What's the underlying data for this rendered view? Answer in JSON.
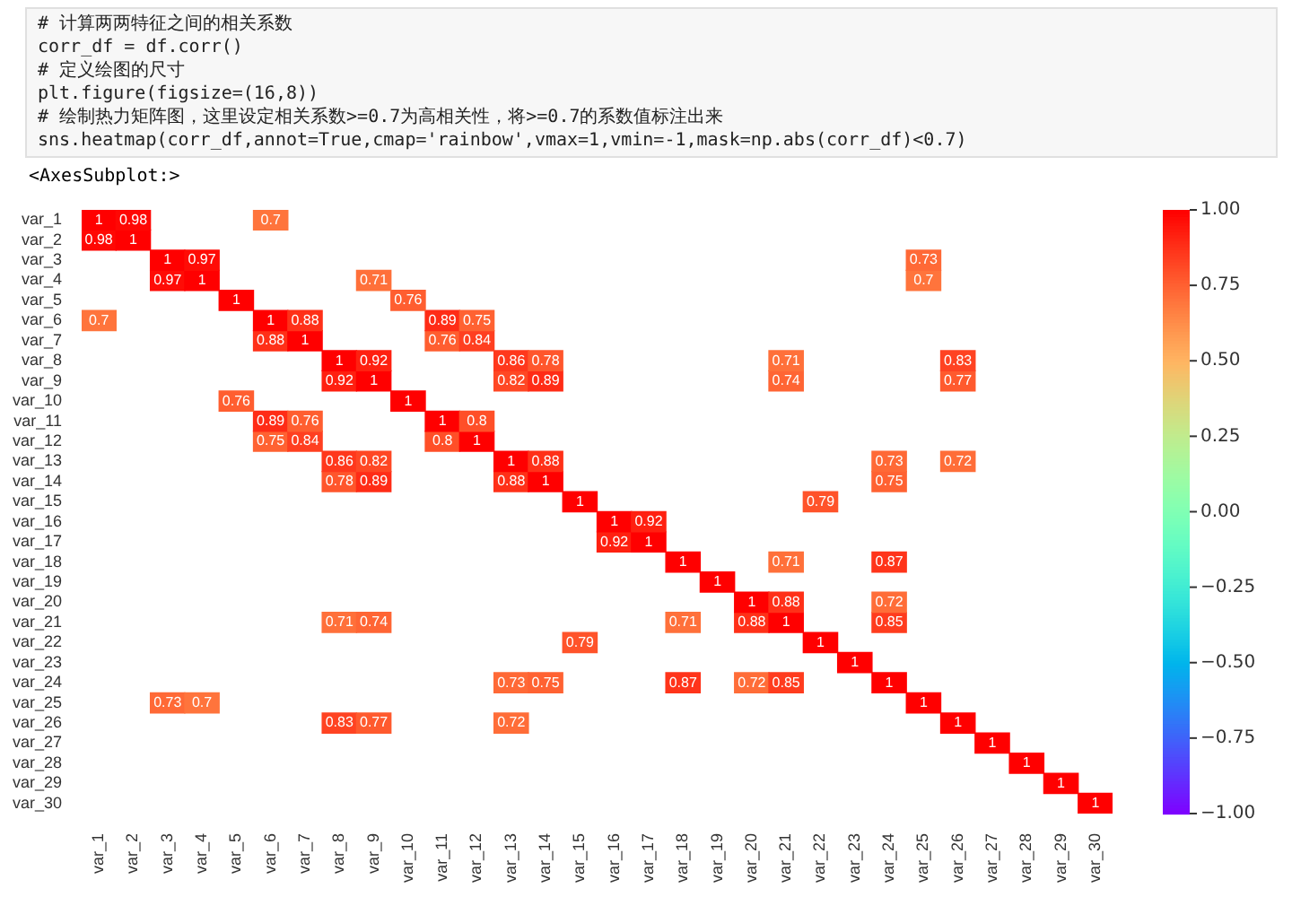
{
  "chart_data": {
    "type": "heatmap",
    "annotations": [
      "# 计算两两特征之间的相关系数",
      "corr_df = df.corr()",
      "# 定义绘图的尺寸",
      "plt.figure(figsize=(16,8))",
      "# 绘制热力矩阵图，这里设定相关系数>=0.7为高相关性，将>=0.7的系数值标注出来",
      "sns.heatmap(corr_df,annot=True,cmap='rainbow',vmax=1,vmin=-1,mask=np.abs(corr_df)<0.7)",
      "<AxesSubplot:>"
    ],
    "categories": [
      "var_1",
      "var_2",
      "var_3",
      "var_4",
      "var_5",
      "var_6",
      "var_7",
      "var_8",
      "var_9",
      "var_10",
      "var_11",
      "var_12",
      "var_13",
      "var_14",
      "var_15",
      "var_16",
      "var_17",
      "var_18",
      "var_19",
      "var_20",
      "var_21",
      "var_22",
      "var_23",
      "var_24",
      "var_25",
      "var_26",
      "var_27",
      "var_28",
      "var_29",
      "var_30"
    ],
    "y_categories": [
      "var_1",
      "var_2",
      "var_3",
      "var_4",
      "var_5",
      "var_6",
      "var_7",
      "var_8",
      "var_9",
      "var_10",
      "var_11",
      "var_12",
      "var_13",
      "var_14",
      "var_15",
      "var_16",
      "var_17",
      "var_18",
      "var_19",
      "var_20",
      "var_21",
      "var_22",
      "var_23",
      "var_24",
      "var_25",
      "var_26",
      "var_27",
      "var_28",
      "var_29",
      "var_30"
    ],
    "cells": [
      [
        1,
        0.98,
        null,
        null,
        null,
        0.7,
        null,
        null,
        null,
        null,
        null,
        null,
        null,
        null,
        null,
        null,
        null,
        null,
        null,
        null,
        null,
        null,
        null,
        null,
        null,
        null,
        null,
        null,
        null,
        null
      ],
      [
        0.98,
        1,
        null,
        null,
        null,
        null,
        null,
        null,
        null,
        null,
        null,
        null,
        null,
        null,
        null,
        null,
        null,
        null,
        null,
        null,
        null,
        null,
        null,
        null,
        null,
        null,
        null,
        null,
        null,
        null
      ],
      [
        null,
        null,
        1,
        0.97,
        null,
        null,
        null,
        null,
        null,
        null,
        null,
        null,
        null,
        null,
        null,
        null,
        null,
        null,
        null,
        null,
        null,
        null,
        null,
        null,
        0.73,
        null,
        null,
        null,
        null,
        null
      ],
      [
        null,
        null,
        0.97,
        1,
        null,
        null,
        null,
        null,
        0.71,
        null,
        null,
        null,
        null,
        null,
        null,
        null,
        null,
        null,
        null,
        null,
        null,
        null,
        null,
        null,
        0.7,
        null,
        null,
        null,
        null,
        null
      ],
      [
        null,
        null,
        null,
        null,
        1,
        null,
        null,
        null,
        null,
        0.76,
        null,
        null,
        null,
        null,
        null,
        null,
        null,
        null,
        null,
        null,
        null,
        null,
        null,
        null,
        null,
        null,
        null,
        null,
        null,
        null
      ],
      [
        0.7,
        null,
        null,
        null,
        null,
        1,
        0.88,
        null,
        null,
        null,
        0.89,
        0.75,
        null,
        null,
        null,
        null,
        null,
        null,
        null,
        null,
        null,
        null,
        null,
        null,
        null,
        null,
        null,
        null,
        null,
        null
      ],
      [
        null,
        null,
        null,
        null,
        null,
        0.88,
        1,
        null,
        null,
        null,
        0.76,
        0.84,
        null,
        null,
        null,
        null,
        null,
        null,
        null,
        null,
        null,
        null,
        null,
        null,
        null,
        null,
        null,
        null,
        null,
        null
      ],
      [
        null,
        null,
        null,
        null,
        null,
        null,
        null,
        1,
        0.92,
        null,
        null,
        null,
        0.86,
        0.78,
        null,
        null,
        null,
        null,
        null,
        null,
        0.71,
        null,
        null,
        null,
        null,
        0.83,
        null,
        null,
        null,
        null
      ],
      [
        null,
        null,
        null,
        null,
        null,
        null,
        null,
        0.92,
        1,
        null,
        null,
        null,
        0.82,
        0.89,
        null,
        null,
        null,
        null,
        null,
        null,
        0.74,
        null,
        null,
        null,
        null,
        0.77,
        null,
        null,
        null,
        null
      ],
      [
        null,
        null,
        null,
        null,
        0.76,
        null,
        null,
        null,
        null,
        1,
        null,
        null,
        null,
        null,
        null,
        null,
        null,
        null,
        null,
        null,
        null,
        null,
        null,
        null,
        null,
        null,
        null,
        null,
        null,
        null
      ],
      [
        null,
        null,
        null,
        null,
        null,
        0.89,
        0.76,
        null,
        null,
        null,
        1,
        0.8,
        null,
        null,
        null,
        null,
        null,
        null,
        null,
        null,
        null,
        null,
        null,
        null,
        null,
        null,
        null,
        null,
        null,
        null
      ],
      [
        null,
        null,
        null,
        null,
        null,
        0.75,
        0.84,
        null,
        null,
        null,
        0.8,
        1,
        null,
        null,
        null,
        null,
        null,
        null,
        null,
        null,
        null,
        null,
        null,
        null,
        null,
        null,
        null,
        null,
        null,
        null
      ],
      [
        null,
        null,
        null,
        null,
        null,
        null,
        null,
        0.86,
        0.82,
        null,
        null,
        null,
        1,
        0.88,
        null,
        null,
        null,
        null,
        null,
        null,
        null,
        null,
        null,
        0.73,
        null,
        0.72,
        null,
        null,
        null,
        null
      ],
      [
        null,
        null,
        null,
        null,
        null,
        null,
        null,
        0.78,
        0.89,
        null,
        null,
        null,
        0.88,
        1,
        null,
        null,
        null,
        null,
        null,
        null,
        null,
        null,
        null,
        0.75,
        null,
        null,
        null,
        null,
        null,
        null
      ],
      [
        null,
        null,
        null,
        null,
        null,
        null,
        null,
        null,
        null,
        null,
        null,
        null,
        null,
        null,
        1,
        null,
        null,
        null,
        null,
        null,
        null,
        0.79,
        null,
        null,
        null,
        null,
        null,
        null,
        null,
        null
      ],
      [
        null,
        null,
        null,
        null,
        null,
        null,
        null,
        null,
        null,
        null,
        null,
        null,
        null,
        null,
        null,
        1,
        0.92,
        null,
        null,
        null,
        null,
        null,
        null,
        null,
        null,
        null,
        null,
        null,
        null,
        null
      ],
      [
        null,
        null,
        null,
        null,
        null,
        null,
        null,
        null,
        null,
        null,
        null,
        null,
        null,
        null,
        null,
        0.92,
        1,
        null,
        null,
        null,
        null,
        null,
        null,
        null,
        null,
        null,
        null,
        null,
        null,
        null
      ],
      [
        null,
        null,
        null,
        null,
        null,
        null,
        null,
        null,
        null,
        null,
        null,
        null,
        null,
        null,
        null,
        null,
        null,
        1,
        null,
        null,
        0.71,
        null,
        null,
        0.87,
        null,
        null,
        null,
        null,
        null,
        null
      ],
      [
        null,
        null,
        null,
        null,
        null,
        null,
        null,
        null,
        null,
        null,
        null,
        null,
        null,
        null,
        null,
        null,
        null,
        null,
        1,
        null,
        null,
        null,
        null,
        null,
        null,
        null,
        null,
        null,
        null,
        null
      ],
      [
        null,
        null,
        null,
        null,
        null,
        null,
        null,
        null,
        null,
        null,
        null,
        null,
        null,
        null,
        null,
        null,
        null,
        null,
        null,
        1,
        0.88,
        null,
        null,
        0.72,
        null,
        null,
        null,
        null,
        null,
        null
      ],
      [
        null,
        null,
        null,
        null,
        null,
        null,
        null,
        0.71,
        0.74,
        null,
        null,
        null,
        null,
        null,
        null,
        null,
        null,
        0.71,
        null,
        0.88,
        1,
        null,
        null,
        0.85,
        null,
        null,
        null,
        null,
        null,
        null
      ],
      [
        null,
        null,
        null,
        null,
        null,
        null,
        null,
        null,
        null,
        null,
        null,
        null,
        null,
        null,
        0.79,
        null,
        null,
        null,
        null,
        null,
        null,
        1,
        null,
        null,
        null,
        null,
        null,
        null,
        null,
        null
      ],
      [
        null,
        null,
        null,
        null,
        null,
        null,
        null,
        null,
        null,
        null,
        null,
        null,
        null,
        null,
        null,
        null,
        null,
        null,
        null,
        null,
        null,
        null,
        1,
        null,
        null,
        null,
        null,
        null,
        null,
        null
      ],
      [
        null,
        null,
        null,
        null,
        null,
        null,
        null,
        null,
        null,
        null,
        null,
        null,
        0.73,
        0.75,
        null,
        null,
        null,
        0.87,
        null,
        0.72,
        0.85,
        null,
        null,
        1,
        null,
        null,
        null,
        null,
        null,
        null
      ],
      [
        null,
        null,
        0.73,
        0.7,
        null,
        null,
        null,
        null,
        null,
        null,
        null,
        null,
        null,
        null,
        null,
        null,
        null,
        null,
        null,
        null,
        null,
        null,
        null,
        null,
        1,
        null,
        null,
        null,
        null,
        null
      ],
      [
        null,
        null,
        null,
        null,
        null,
        null,
        null,
        0.83,
        0.77,
        null,
        null,
        null,
        0.72,
        null,
        null,
        null,
        null,
        null,
        null,
        null,
        null,
        null,
        null,
        null,
        null,
        1,
        null,
        null,
        null,
        null
      ],
      [
        null,
        null,
        null,
        null,
        null,
        null,
        null,
        null,
        null,
        null,
        null,
        null,
        null,
        null,
        null,
        null,
        null,
        null,
        null,
        null,
        null,
        null,
        null,
        null,
        null,
        null,
        1,
        null,
        null,
        null
      ],
      [
        null,
        null,
        null,
        null,
        null,
        null,
        null,
        null,
        null,
        null,
        null,
        null,
        null,
        null,
        null,
        null,
        null,
        null,
        null,
        null,
        null,
        null,
        null,
        null,
        null,
        null,
        null,
        1,
        null,
        null
      ],
      [
        null,
        null,
        null,
        null,
        null,
        null,
        null,
        null,
        null,
        null,
        null,
        null,
        null,
        null,
        null,
        null,
        null,
        null,
        null,
        null,
        null,
        null,
        null,
        null,
        null,
        null,
        null,
        null,
        1,
        null
      ],
      [
        null,
        null,
        null,
        null,
        null,
        null,
        null,
        null,
        null,
        null,
        null,
        null,
        null,
        null,
        null,
        null,
        null,
        null,
        null,
        null,
        null,
        null,
        null,
        null,
        null,
        null,
        null,
        null,
        null,
        1
      ]
    ],
    "data_labels": true,
    "clim": [
      -1,
      1
    ],
    "cticks": [
      {
        "value": -1,
        "label": "−1.00"
      },
      {
        "value": -0.75,
        "label": "−0.75"
      },
      {
        "value": -0.5,
        "label": "−0.50"
      },
      {
        "value": -0.25,
        "label": "−0.25"
      },
      {
        "value": 0,
        "label": "0.00"
      },
      {
        "value": 0.25,
        "label": "0.25"
      },
      {
        "value": 0.5,
        "label": "0.50"
      },
      {
        "value": 0.75,
        "label": "0.75"
      },
      {
        "value": 1,
        "label": "1.00"
      }
    ]
  }
}
